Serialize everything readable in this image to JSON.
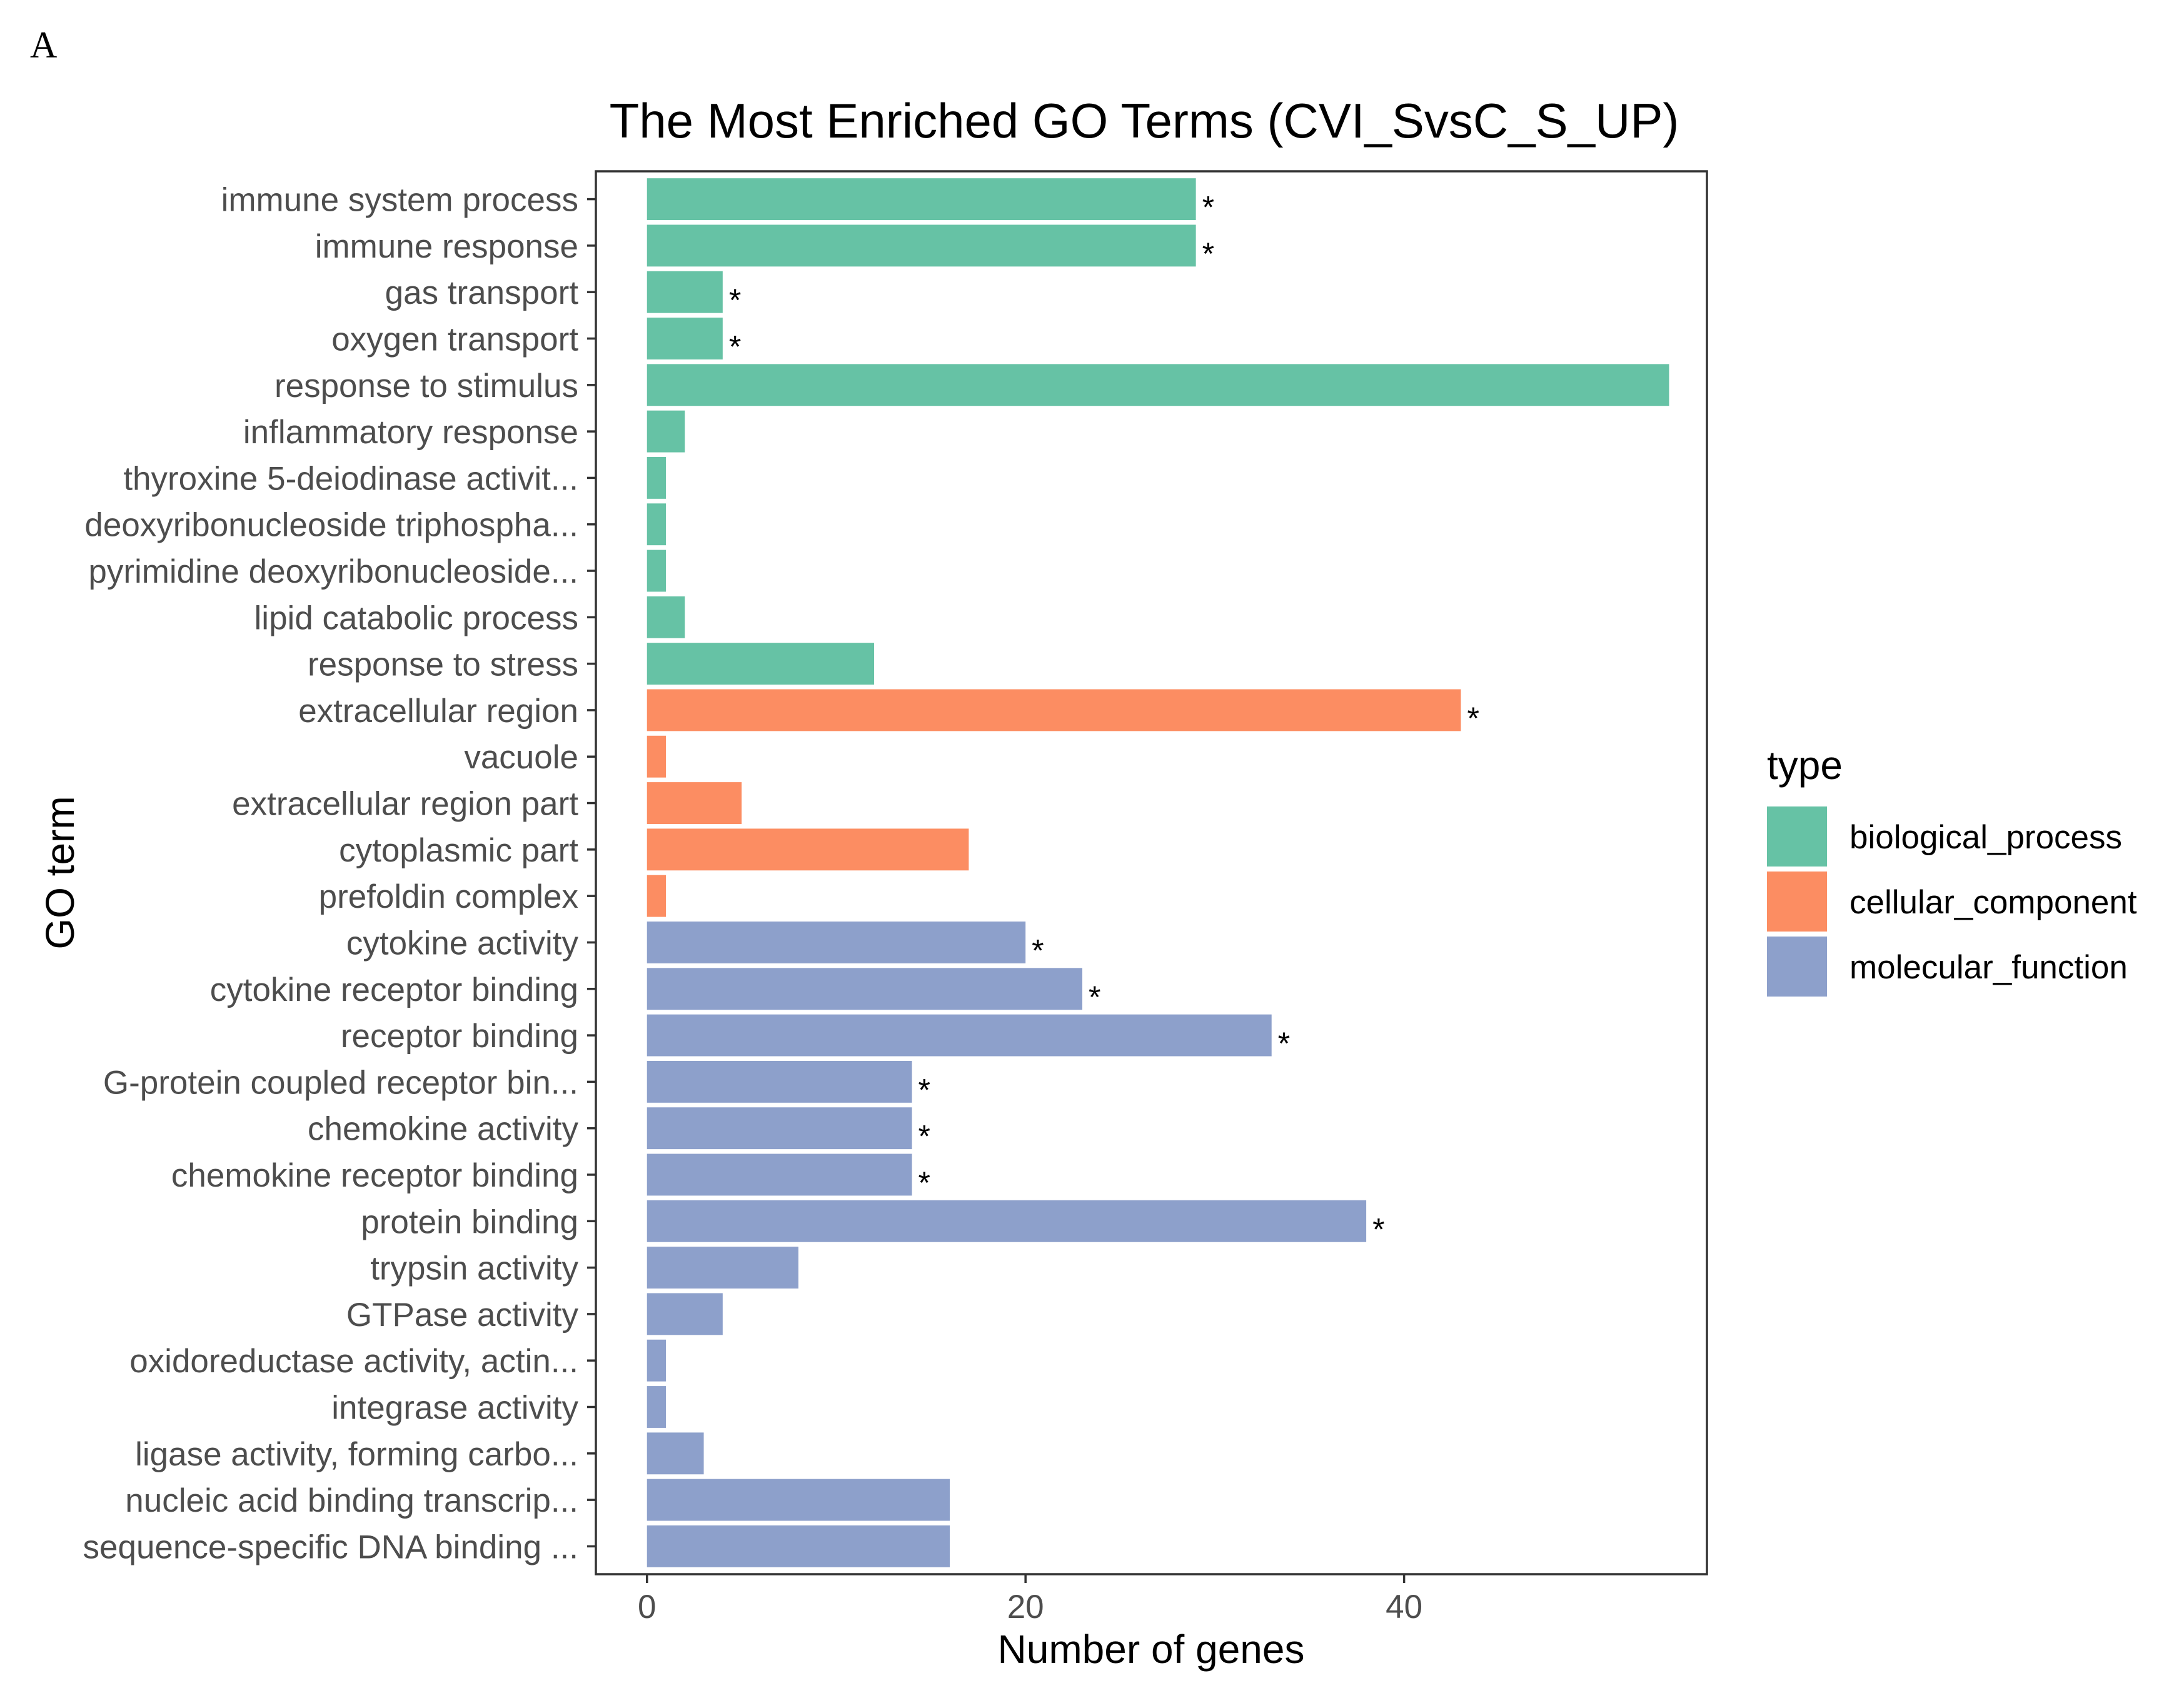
{
  "panel_label": "A",
  "chart_data": {
    "type": "bar",
    "orientation": "horizontal",
    "title": "The Most Enriched GO Terms (CVI_SvsC_S_UP)",
    "xlabel": "Number of genes",
    "ylabel": "GO term",
    "xlim": [
      -2.7,
      56
    ],
    "xticks": [
      0,
      20,
      40
    ],
    "grid": false,
    "legend_title": "type",
    "legend_position": "right",
    "colors": {
      "biological_process": "#66C2A5",
      "cellular_component": "#FC8D62",
      "molecular_function": "#8DA0CB"
    },
    "legend": [
      {
        "key": "biological_process",
        "label": "biological_process"
      },
      {
        "key": "cellular_component",
        "label": "cellular_component"
      },
      {
        "key": "molecular_function",
        "label": "molecular_function"
      }
    ],
    "significance_marker": "*",
    "categories": [
      "immune system process",
      "immune response",
      "gas transport",
      "oxygen transport",
      "response to stimulus",
      "inflammatory response",
      "thyroxine 5-deiodinase activit...",
      "deoxyribonucleoside triphospha...",
      "pyrimidine deoxyribonucleoside...",
      "lipid catabolic process",
      "response to stress",
      "extracellular region",
      "vacuole",
      "extracellular region part",
      "cytoplasmic part",
      "prefoldin complex",
      "cytokine activity",
      "cytokine receptor binding",
      "receptor binding",
      "G-protein coupled receptor bin...",
      "chemokine activity",
      "chemokine receptor binding",
      "protein binding",
      "trypsin activity",
      "GTPase activity",
      "oxidoreductase activity, actin...",
      "integrase activity",
      "ligase activity, forming carbo...",
      "nucleic acid binding transcrip...",
      "sequence-specific DNA binding ..."
    ],
    "values": [
      29,
      29,
      4,
      4,
      54,
      2,
      1,
      1,
      1,
      2,
      12,
      43,
      1,
      5,
      17,
      1,
      20,
      23,
      33,
      14,
      14,
      14,
      38,
      8,
      4,
      1,
      1,
      3,
      16,
      16
    ],
    "types": [
      "biological_process",
      "biological_process",
      "biological_process",
      "biological_process",
      "biological_process",
      "biological_process",
      "biological_process",
      "biological_process",
      "biological_process",
      "biological_process",
      "biological_process",
      "cellular_component",
      "cellular_component",
      "cellular_component",
      "cellular_component",
      "cellular_component",
      "molecular_function",
      "molecular_function",
      "molecular_function",
      "molecular_function",
      "molecular_function",
      "molecular_function",
      "molecular_function",
      "molecular_function",
      "molecular_function",
      "molecular_function",
      "molecular_function",
      "molecular_function",
      "molecular_function",
      "molecular_function"
    ],
    "significant": [
      true,
      true,
      true,
      true,
      false,
      false,
      false,
      false,
      false,
      false,
      false,
      true,
      false,
      false,
      false,
      false,
      true,
      true,
      true,
      true,
      true,
      true,
      true,
      false,
      false,
      false,
      false,
      false,
      false,
      false
    ]
  }
}
